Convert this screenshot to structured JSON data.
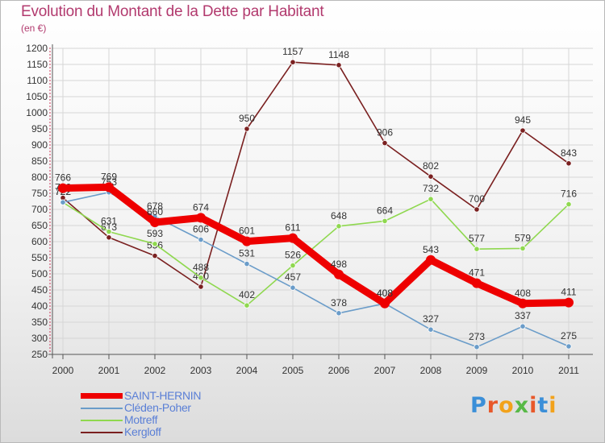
{
  "header": {
    "title": "Evolution du Montant de la Dette par Habitant",
    "subtitle": "(en €)"
  },
  "brand": {
    "logo_text": "Proxiti",
    "letter_colors": [
      "#3b8fd8",
      "#e8582a",
      "#f2a21b",
      "#58b947",
      "#e8582a",
      "#3b8fd8",
      "#f2a21b"
    ]
  },
  "chart_data": {
    "type": "line",
    "title": "Evolution du Montant de la Dette par Habitant",
    "subtitle": "(en €)",
    "xlabel": "",
    "ylabel": "",
    "x": [
      "2000",
      "2001",
      "2002",
      "2003",
      "2004",
      "2005",
      "2006",
      "2007",
      "2008",
      "2009",
      "2010",
      "2011"
    ],
    "ylim": [
      250,
      1200
    ],
    "yticks": [
      250,
      300,
      350,
      400,
      450,
      500,
      550,
      600,
      650,
      700,
      750,
      800,
      850,
      900,
      950,
      1000,
      1050,
      1100,
      1150,
      1200
    ],
    "grid": true,
    "legend_position": "bottom-left",
    "series": [
      {
        "name": "Kergloff",
        "color": "#7a2020",
        "values": [
          736,
          613,
          556,
          460,
          950,
          1157,
          1148,
          906,
          802,
          700,
          945,
          843
        ],
        "labels": [
          "736",
          "613",
          "556",
          "460",
          "950",
          "1157",
          "1148",
          "906",
          "802",
          "700",
          "945",
          "843"
        ]
      },
      {
        "name": "Motreff",
        "color": "#8fd84f",
        "values": [
          722,
          631,
          593,
          488,
          402,
          526,
          648,
          664,
          732,
          577,
          579,
          716
        ],
        "labels": [
          "722",
          "631",
          "593",
          "488",
          "402",
          "526",
          "648",
          "664",
          "732",
          "577",
          "579",
          "716"
        ]
      },
      {
        "name": "Cléden-Poher",
        "color": "#6a9cc9",
        "values": [
          722,
          753,
          678,
          606,
          531,
          457,
          378,
          408,
          327,
          273,
          337,
          275
        ],
        "labels": [
          "722",
          "753",
          "678",
          "606",
          "531",
          "457",
          "378",
          "408",
          "327",
          "273",
          "337",
          "275"
        ]
      },
      {
        "name": "SAINT-HERNIN",
        "color": "#ee0000",
        "values": [
          766,
          769,
          660,
          674,
          601,
          611,
          498,
          408,
          543,
          471,
          408,
          411
        ],
        "labels": [
          "766",
          "769",
          "660",
          "674",
          "601",
          "611",
          "498",
          "408",
          "543",
          "471",
          "408",
          "411"
        ]
      }
    ],
    "legend": [
      "SAINT-HERNIN",
      "Cléden-Poher",
      "Motreff",
      "Kergloff"
    ]
  }
}
